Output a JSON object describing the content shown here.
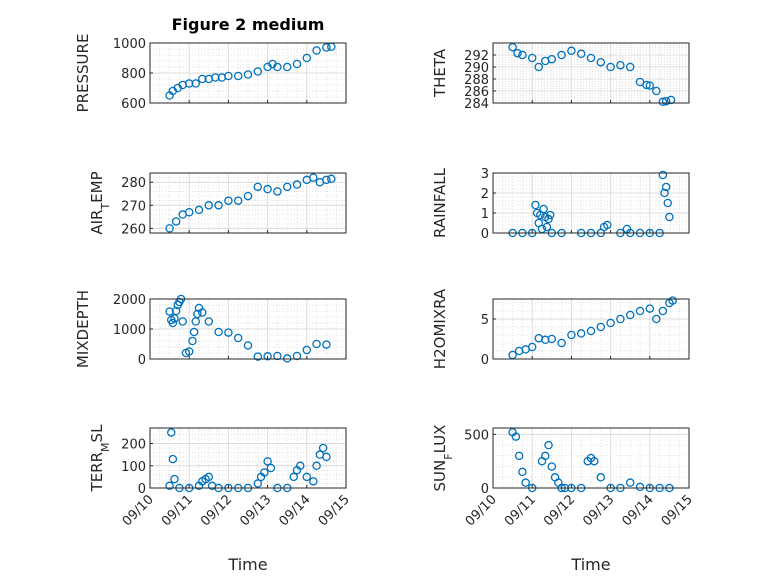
{
  "figure": {
    "title": "Figure 2 medium",
    "marker_color": "#0072BD",
    "grid": "on",
    "minor_grid": "on"
  },
  "chart_data": [
    {
      "type": "scatter",
      "panel": 1,
      "title": "Figure 2 medium",
      "ylabel": "PRESSURE",
      "ylabel_sub": null,
      "ylim": [
        600,
        1000
      ],
      "yticks": [
        600,
        800,
        1000
      ],
      "xlim": [
        "09/10",
        "09/15"
      ],
      "show_xticklabels": false,
      "x": [
        "09/10 12:00",
        "09/10 14:00",
        "09/10 17:00",
        "09/10 20:00",
        "09/11 00:00",
        "09/11 04:00",
        "09/11 08:00",
        "09/11 12:00",
        "09/11 16:00",
        "09/11 20:00",
        "09/12 00:00",
        "09/12 06:00",
        "09/12 12:00",
        "09/12 18:00",
        "09/13 00:00",
        "09/13 03:00",
        "09/13 06:00",
        "09/13 12:00",
        "09/13 18:00",
        "09/14 00:00",
        "09/14 06:00",
        "09/14 12:00",
        "09/14 15:00"
      ],
      "values": [
        650,
        680,
        700,
        720,
        730,
        730,
        760,
        760,
        770,
        770,
        780,
        780,
        790,
        810,
        840,
        860,
        840,
        840,
        860,
        900,
        950,
        970,
        975
      ]
    },
    {
      "type": "scatter",
      "panel": 2,
      "ylabel": "THETA",
      "ylabel_sub": null,
      "ylim": [
        284,
        294
      ],
      "yticks": [
        284,
        286,
        288,
        290,
        292
      ],
      "xlim": [
        "09/10",
        "09/15"
      ],
      "show_xticklabels": false,
      "x": [
        "09/10 12:00",
        "09/10 15:00",
        "09/10 18:00",
        "09/11 00:00",
        "09/11 04:00",
        "09/11 08:00",
        "09/11 12:00",
        "09/11 18:00",
        "09/12 00:00",
        "09/12 06:00",
        "09/12 12:00",
        "09/12 18:00",
        "09/13 00:00",
        "09/13 06:00",
        "09/13 12:00",
        "09/13 18:00",
        "09/13 22:00",
        "09/14 00:00",
        "09/14 04:00",
        "09/14 08:00",
        "09/14 10:00",
        "09/14 13:00"
      ],
      "values": [
        293.3,
        292.3,
        292.0,
        291.5,
        290.0,
        291.0,
        291.3,
        292.0,
        292.7,
        292.2,
        291.5,
        290.8,
        290.0,
        290.3,
        290.0,
        287.5,
        287.0,
        286.9,
        286.0,
        284.2,
        284.3,
        284.5
      ]
    },
    {
      "type": "scatter",
      "panel": 3,
      "ylabel": "AIR",
      "ylabel_sub": "T",
      "ylabel_tail": "EMP",
      "ylim": [
        258,
        284
      ],
      "yticks": [
        260,
        270,
        280
      ],
      "xlim": [
        "09/10",
        "09/15"
      ],
      "show_xticklabels": false,
      "x": [
        "09/10 12:00",
        "09/10 16:00",
        "09/10 20:00",
        "09/11 00:00",
        "09/11 06:00",
        "09/11 12:00",
        "09/11 18:00",
        "09/12 00:00",
        "09/12 06:00",
        "09/12 12:00",
        "09/12 18:00",
        "09/13 00:00",
        "09/13 06:00",
        "09/13 12:00",
        "09/13 18:00",
        "09/14 00:00",
        "09/14 04:00",
        "09/14 08:00",
        "09/14 12:00",
        "09/14 15:00"
      ],
      "values": [
        260,
        263,
        266,
        267,
        268,
        270,
        270,
        272,
        272,
        274,
        278,
        277,
        276,
        278,
        279,
        281,
        282,
        280,
        281,
        281.5
      ]
    },
    {
      "type": "scatter",
      "panel": 4,
      "ylabel": "RAINFALL",
      "ylabel_sub": null,
      "ylim": [
        0,
        3
      ],
      "yticks": [
        0,
        1,
        2,
        3
      ],
      "xlim": [
        "09/10",
        "09/15"
      ],
      "show_xticklabels": false,
      "x": [
        "09/10 12:00",
        "09/10 18:00",
        "09/11 00:00",
        "09/11 02:00",
        "09/11 03:00",
        "09/11 04:00",
        "09/11 05:00",
        "09/11 06:00",
        "09/11 07:00",
        "09/11 08:00",
        "09/11 09:00",
        "09/11 10:00",
        "09/11 11:00",
        "09/11 12:00",
        "09/11 18:00",
        "09/12 06:00",
        "09/12 12:00",
        "09/12 18:00",
        "09/12 20:00",
        "09/12 22:00",
        "09/13 06:00",
        "09/13 10:00",
        "09/13 12:00",
        "09/13 18:00",
        "09/14 00:00",
        "09/14 06:00",
        "09/14 08:00",
        "09/14 09:00",
        "09/14 10:00",
        "09/14 11:00",
        "09/14 12:00"
      ],
      "values": [
        0,
        0,
        0,
        1.4,
        1.0,
        0.5,
        0.9,
        0.2,
        1.2,
        0.8,
        0.3,
        0.7,
        0.9,
        0,
        0,
        0,
        0,
        0,
        0.3,
        0.4,
        0,
        0.2,
        0,
        0,
        0,
        0,
        2.9,
        2.0,
        2.3,
        1.5,
        0.8
      ]
    },
    {
      "type": "scatter",
      "panel": 5,
      "ylabel": "MIXDEPTH",
      "ylabel_sub": null,
      "ylim": [
        0,
        2000
      ],
      "yticks": [
        0,
        1000,
        2000
      ],
      "xlim": [
        "09/10",
        "09/15"
      ],
      "show_xticklabels": false,
      "x": [
        "09/10 12:00",
        "09/10 13:00",
        "09/10 14:00",
        "09/10 15:00",
        "09/10 16:00",
        "09/10 17:00",
        "09/10 18:00",
        "09/10 19:00",
        "09/10 20:00",
        "09/10 22:00",
        "09/11 00:00",
        "09/11 02:00",
        "09/11 03:00",
        "09/11 04:00",
        "09/11 05:00",
        "09/11 06:00",
        "09/11 08:00",
        "09/11 12:00",
        "09/11 18:00",
        "09/12 00:00",
        "09/12 06:00",
        "09/12 12:00",
        "09/12 18:00",
        "09/13 00:00",
        "09/13 06:00",
        "09/13 12:00",
        "09/13 18:00",
        "09/14 00:00",
        "09/14 06:00",
        "09/14 12:00"
      ],
      "values": [
        1580,
        1300,
        1200,
        1350,
        1600,
        1800,
        1900,
        2000,
        1250,
        200,
        250,
        600,
        900,
        1250,
        1500,
        1700,
        1550,
        1250,
        900,
        880,
        700,
        450,
        80,
        90,
        100,
        20,
        100,
        300,
        500,
        480
      ]
    },
    {
      "type": "scatter",
      "panel": 6,
      "ylabel": "H2OMIXRA",
      "ylabel_sub": null,
      "ylim": [
        0,
        7.5
      ],
      "yticks": [
        0,
        5
      ],
      "xlim": [
        "09/10",
        "09/15"
      ],
      "show_xticklabels": false,
      "x": [
        "09/10 12:00",
        "09/10 16:00",
        "09/10 20:00",
        "09/11 00:00",
        "09/11 04:00",
        "09/11 08:00",
        "09/11 12:00",
        "09/11 18:00",
        "09/12 00:00",
        "09/12 06:00",
        "09/12 12:00",
        "09/12 18:00",
        "09/13 00:00",
        "09/13 06:00",
        "09/13 12:00",
        "09/13 18:00",
        "09/14 00:00",
        "09/14 04:00",
        "09/14 08:00",
        "09/14 12:00",
        "09/14 14:00"
      ],
      "values": [
        0.5,
        1.0,
        1.2,
        1.5,
        2.6,
        2.4,
        2.5,
        2.0,
        3.0,
        3.2,
        3.5,
        4.0,
        4.5,
        5.0,
        5.5,
        6.0,
        6.3,
        5.0,
        6.0,
        7.0,
        7.3
      ]
    },
    {
      "type": "scatter",
      "panel": 7,
      "ylabel": "TERR",
      "ylabel_sub": "M",
      "ylabel_tail": "SL",
      "ylim": [
        0,
        270
      ],
      "yticks": [
        0,
        100,
        200
      ],
      "xlim": [
        "09/10",
        "09/15"
      ],
      "show_xticklabels": true,
      "xticklabels": [
        "09/10",
        "09/11",
        "09/12",
        "09/13",
        "09/14",
        "09/15"
      ],
      "xlabel": "Time",
      "x": [
        "09/10 12:00",
        "09/10 13:00",
        "09/10 14:00",
        "09/10 15:00",
        "09/10 18:00",
        "09/11 00:00",
        "09/11 06:00",
        "09/11 08:00",
        "09/11 10:00",
        "09/11 12:00",
        "09/11 14:00",
        "09/11 18:00",
        "09/12 00:00",
        "09/12 06:00",
        "09/12 12:00",
        "09/12 18:00",
        "09/12 20:00",
        "09/12 22:00",
        "09/13 00:00",
        "09/13 02:00",
        "09/13 06:00",
        "09/13 12:00",
        "09/13 16:00",
        "09/13 18:00",
        "09/13 20:00",
        "09/14 00:00",
        "09/14 04:00",
        "09/14 06:00",
        "09/14 08:00",
        "09/14 10:00",
        "09/14 12:00"
      ],
      "values": [
        10,
        250,
        130,
        40,
        0,
        0,
        10,
        30,
        40,
        50,
        10,
        0,
        0,
        0,
        0,
        20,
        50,
        70,
        120,
        90,
        0,
        0,
        50,
        80,
        100,
        50,
        30,
        100,
        150,
        180,
        140
      ]
    },
    {
      "type": "scatter",
      "panel": 8,
      "ylabel": "SUN",
      "ylabel_sub": "F",
      "ylabel_tail": "LUX",
      "ylim": [
        0,
        560
      ],
      "yticks": [
        0,
        500
      ],
      "xlim": [
        "09/10",
        "09/15"
      ],
      "show_xticklabels": true,
      "xticklabels": [
        "09/10",
        "09/11",
        "09/12",
        "09/13",
        "09/14",
        "09/15"
      ],
      "xlabel": "Time",
      "x": [
        "09/10 12:00",
        "09/10 14:00",
        "09/10 16:00",
        "09/10 18:00",
        "09/10 20:00",
        "09/11 00:00",
        "09/11 06:00",
        "09/11 08:00",
        "09/11 10:00",
        "09/11 12:00",
        "09/11 14:00",
        "09/11 16:00",
        "09/11 18:00",
        "09/11 20:00",
        "09/12 00:00",
        "09/12 06:00",
        "09/12 10:00",
        "09/12 12:00",
        "09/12 14:00",
        "09/12 18:00",
        "09/13 00:00",
        "09/13 06:00",
        "09/13 12:00",
        "09/13 18:00",
        "09/14 00:00",
        "09/14 06:00",
        "09/14 12:00"
      ],
      "values": [
        520,
        480,
        300,
        150,
        50,
        0,
        250,
        300,
        400,
        200,
        100,
        50,
        0,
        0,
        0,
        0,
        250,
        280,
        250,
        100,
        0,
        0,
        50,
        10,
        0,
        0,
        0
      ]
    }
  ]
}
